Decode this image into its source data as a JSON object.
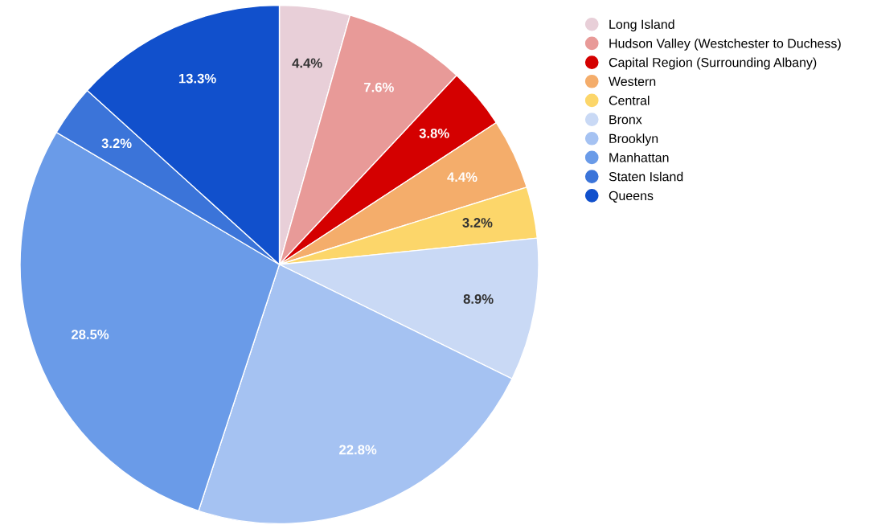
{
  "chart_data": {
    "type": "pie",
    "categories": [
      "Long Island",
      "Hudson Valley (Westchester to Duchess)",
      "Capital Region (Surrounding Albany)",
      "Western",
      "Central",
      "Bronx",
      "Brooklyn",
      "Manhattan",
      "Staten Island",
      "Queens"
    ],
    "values": [
      4.4,
      7.6,
      3.8,
      4.4,
      3.2,
      8.9,
      22.8,
      28.5,
      3.2,
      13.3
    ],
    "colors": [
      "#e8cfd8",
      "#e89a98",
      "#d40000",
      "#f4ad6b",
      "#fcd66a",
      "#c9d9f5",
      "#a5c2f2",
      "#6a9be8",
      "#3b74d9",
      "#1150cc"
    ],
    "value_labels": [
      "4.4%",
      "7.6%",
      "3.8%",
      "4.4%",
      "3.2%",
      "8.9%",
      "22.8%",
      "28.5%",
      "3.2%",
      "13.3%"
    ],
    "legend": "top right"
  }
}
